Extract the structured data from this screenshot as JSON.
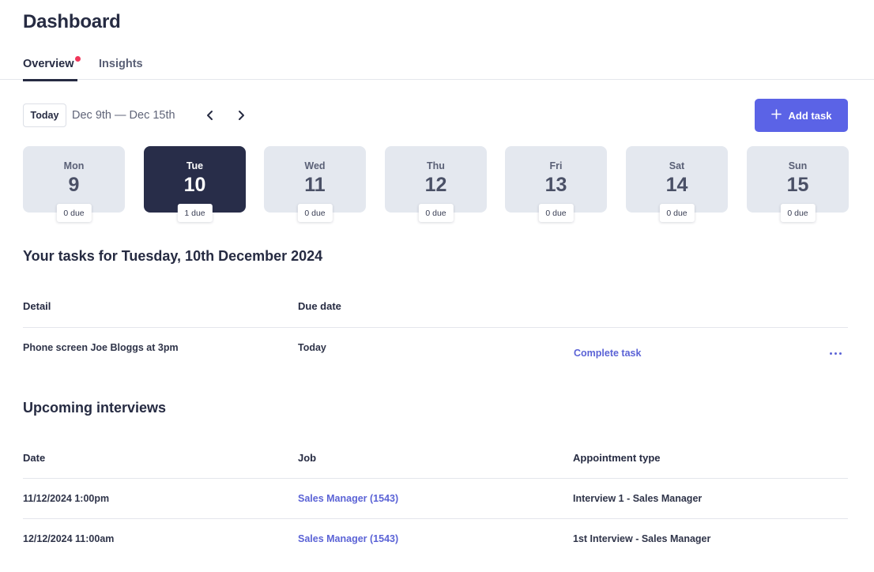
{
  "page": {
    "title": "Dashboard"
  },
  "tabs": [
    {
      "label": "Overview",
      "active": true,
      "has_notification_dot": true
    },
    {
      "label": "Insights",
      "active": false
    }
  ],
  "toolbar": {
    "today_label": "Today",
    "date_range": "Dec 9th — Dec 15th",
    "prev_icon": "chevron-left-icon",
    "next_icon": "chevron-right-icon",
    "add_task_label": "Add task",
    "add_task_icon": "plus-icon"
  },
  "days": [
    {
      "name": "Mon",
      "number": "9",
      "due": "0 due",
      "active": false
    },
    {
      "name": "Tue",
      "number": "10",
      "due": "1 due",
      "active": true
    },
    {
      "name": "Wed",
      "number": "11",
      "due": "0 due",
      "active": false
    },
    {
      "name": "Thu",
      "number": "12",
      "due": "0 due",
      "active": false
    },
    {
      "name": "Fri",
      "number": "13",
      "due": "0 due",
      "active": false
    },
    {
      "name": "Sat",
      "number": "14",
      "due": "0 due",
      "active": false
    },
    {
      "name": "Sun",
      "number": "15",
      "due": "0 due",
      "active": false
    }
  ],
  "tasks": {
    "title": "Your tasks for Tuesday, 10th December 2024",
    "columns": [
      "Detail",
      "Due date"
    ],
    "rows": [
      {
        "detail": "Phone screen Joe Bloggs at 3pm",
        "due": "Today",
        "action": "Complete task",
        "more_icon": "more-horizontal-icon"
      }
    ]
  },
  "interviews": {
    "title": "Upcoming interviews",
    "columns": [
      "Date",
      "Job",
      "Appointment type"
    ],
    "rows": [
      {
        "date": "11/12/2024 1:00pm",
        "job": "Sales Manager (1543)",
        "type": "Interview 1 - Sales Manager"
      },
      {
        "date": "12/12/2024 11:00am",
        "job": "Sales Manager (1543)",
        "type": "1st Interview - Sales Manager"
      }
    ]
  },
  "colors": {
    "accent": "#5b63e6",
    "link": "#5b63d6",
    "active_day": "#282d49",
    "day_card": "#e4e8ef",
    "notification_dot": "#f0365a"
  }
}
